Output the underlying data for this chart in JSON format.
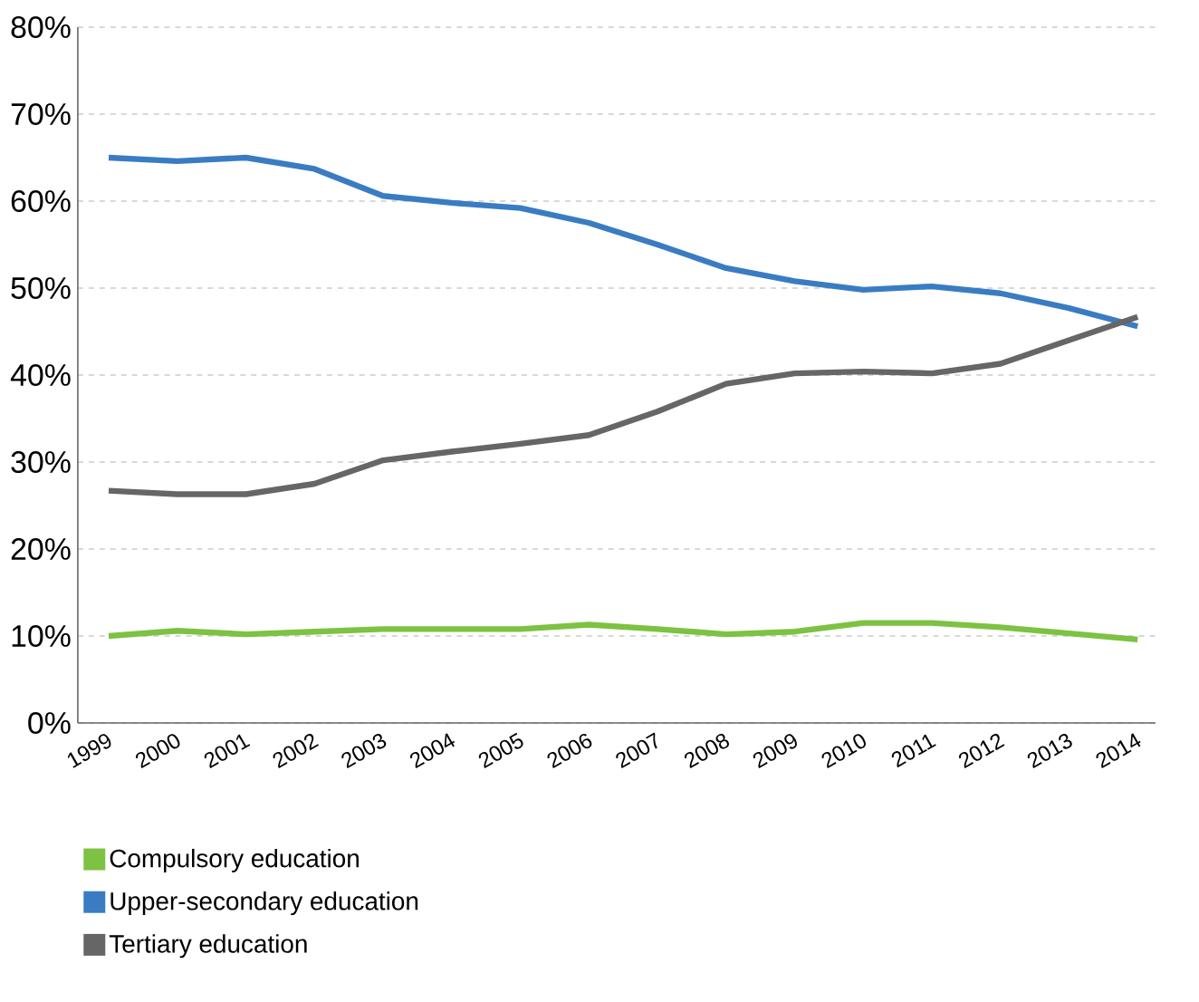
{
  "chart_data": {
    "type": "line",
    "categories": [
      "1999",
      "2000",
      "2001",
      "2002",
      "2003",
      "2004",
      "2005",
      "2006",
      "2007",
      "2008",
      "2009",
      "2010",
      "2011",
      "2012",
      "2013",
      "2014"
    ],
    "series": [
      {
        "name": "Compulsory education",
        "color": "#7dc242",
        "values": [
          10.0,
          10.6,
          10.2,
          10.5,
          10.8,
          10.8,
          10.8,
          11.3,
          10.8,
          10.2,
          10.5,
          11.5,
          11.5,
          11.0,
          10.3,
          9.6
        ]
      },
      {
        "name": "Upper-secondary education",
        "color": "#3a7cc2",
        "values": [
          65.0,
          64.6,
          65.0,
          63.7,
          60.6,
          59.8,
          59.2,
          57.5,
          55.0,
          52.3,
          50.8,
          49.8,
          50.2,
          49.4,
          47.7,
          45.6
        ]
      },
      {
        "name": "Tertiary education",
        "color": "#666666",
        "values": [
          26.7,
          26.3,
          26.3,
          27.5,
          30.2,
          31.2,
          32.1,
          33.1,
          35.8,
          39.0,
          40.2,
          40.4,
          40.2,
          41.3,
          44.0,
          46.7
        ]
      }
    ],
    "ylim": [
      0,
      80
    ],
    "yticks": [
      {
        "value": 0,
        "label": "0%"
      },
      {
        "value": 10,
        "label": "10%"
      },
      {
        "value": 20,
        "label": "20%"
      },
      {
        "value": 30,
        "label": "30%"
      },
      {
        "value": 40,
        "label": "40%"
      },
      {
        "value": 50,
        "label": "50%"
      },
      {
        "value": 60,
        "label": "60%"
      },
      {
        "value": 70,
        "label": "70%"
      },
      {
        "value": 80,
        "label": "80%"
      }
    ],
    "grid": "y",
    "legend": "bottom",
    "marker": "none",
    "line_style": "solid"
  }
}
